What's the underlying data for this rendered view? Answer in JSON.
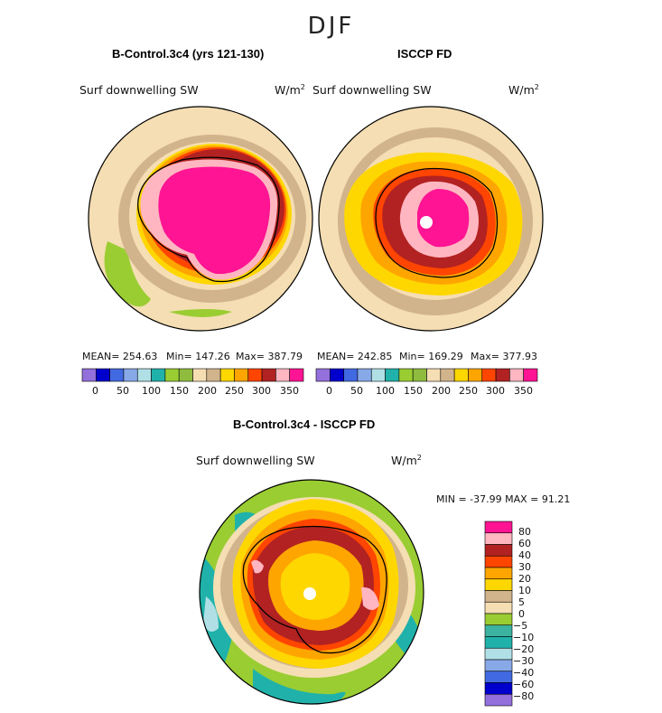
{
  "page": {
    "title": "DJF"
  },
  "colors": {
    "abs_palette": [
      "#9370db",
      "#0000cd",
      "#4169e1",
      "#87a9e8",
      "#b0e0e6",
      "#20b2aa",
      "#9acd32",
      "#8fbc3f",
      "#f5deb3",
      "#d2b48c",
      "#ffd700",
      "#ffa500",
      "#ff4500",
      "#b22222",
      "#ffb6c1",
      "#ff1493"
    ],
    "diff_palette": [
      "#9370db",
      "#0000cd",
      "#4169e1",
      "#87a9e8",
      "#b0e0e6",
      "#20b2aa",
      "#3cb3a0",
      "#9acd32",
      "#f5deb3",
      "#d2b48c",
      "#ffd700",
      "#ffa500",
      "#ff4500",
      "#b22222",
      "#ffb6c1",
      "#ff1493"
    ],
    "coast": "#000000"
  },
  "chart_data": [
    {
      "type": "heatmap",
      "projection": "south-polar-stereographic",
      "title": "B-Control.3c4 (yrs 121-130)",
      "variable": "Surf downwelling SW",
      "units": "W/m",
      "units_sup": "2",
      "mean": "MEAN= 254.63",
      "min": "Min= 147.26",
      "max": "Max= 387.79",
      "colorbar_levels": [
        0,
        50,
        100,
        150,
        200,
        250,
        300,
        350
      ],
      "colorbar_labels": [
        "0",
        "50",
        "100",
        "150",
        "200",
        "250",
        "300",
        "350"
      ]
    },
    {
      "type": "heatmap",
      "projection": "south-polar-stereographic",
      "title": "ISCCP FD",
      "variable": "Surf downwelling SW",
      "units": "W/m",
      "units_sup": "2",
      "mean": "MEAN= 242.85",
      "min": "Min= 169.29",
      "max": "Max= 377.93",
      "colorbar_levels": [
        0,
        50,
        100,
        150,
        200,
        250,
        300,
        350
      ],
      "colorbar_labels": [
        "0",
        "50",
        "100",
        "150",
        "200",
        "250",
        "300",
        "350"
      ]
    },
    {
      "type": "heatmap",
      "projection": "south-polar-stereographic",
      "title": "B-Control.3c4 - ISCCP FD",
      "variable": "Surf downwelling SW",
      "units": "W/m",
      "units_sup": "2",
      "minmax": "MIN = -37.99 MAX =  91.21",
      "min": -37.99,
      "max": 91.21,
      "colorbar_levels": [
        80,
        60,
        40,
        30,
        20,
        10,
        5,
        0,
        -5,
        -10,
        -20,
        -30,
        -40,
        -60,
        -80
      ],
      "colorbar_labels": [
        "80",
        "60",
        "40",
        "30",
        "20",
        "10",
        "5",
        "0",
        "−5",
        "−10",
        "−20",
        "−30",
        "−40",
        "−60",
        "−80"
      ]
    }
  ]
}
